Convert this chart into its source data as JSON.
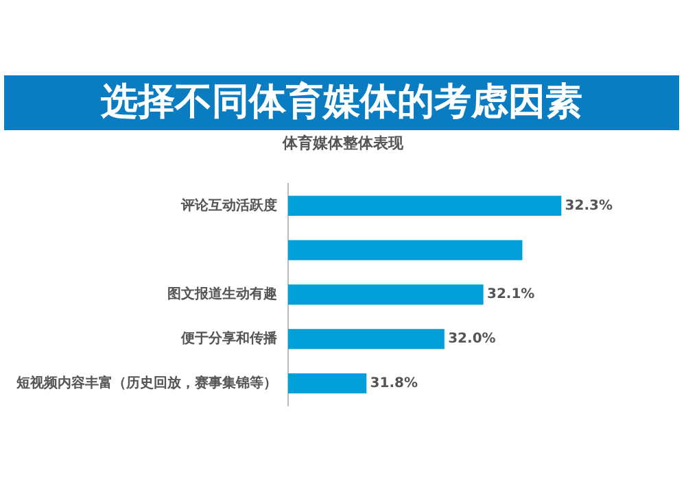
{
  "chart_data": {
    "type": "bar",
    "orientation": "horizontal",
    "title": "选择不同体育媒体的考虑因素",
    "subtitle": "体育媒体整体表现",
    "categories": [
      "评论互动活跃度",
      null,
      "图文报道生动有趣",
      "便于分享和传播",
      "短视频内容丰富（历史回放，赛事集锦等）"
    ],
    "values": [
      32.3,
      32.2,
      32.1,
      32.0,
      31.8
    ],
    "value_labels": [
      "32.3%",
      null,
      "32.1%",
      "32.0%",
      "31.8%"
    ],
    "color": "#009fd9",
    "tick_labels": "y",
    "grid": false,
    "legend": false
  }
}
